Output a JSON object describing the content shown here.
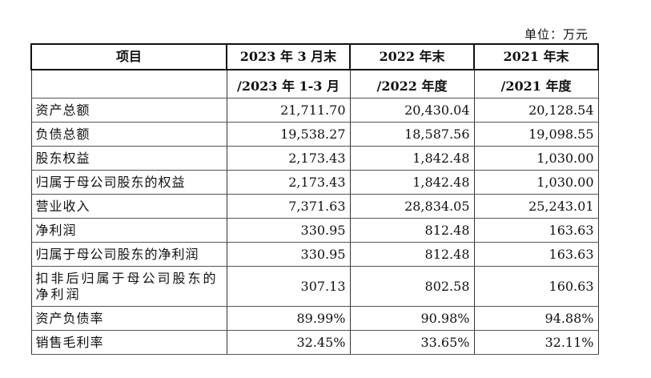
{
  "unit_label": "单位：万元",
  "headers": {
    "item": "项目",
    "col1_a": "2023 年 3 月末",
    "col2_a": "2022 年末",
    "col3_a": "2021 年末",
    "col1_b": "/2023 年 1-3 月",
    "col2_b": "/2022 年度",
    "col3_b": "/2021 年度"
  },
  "rows": [
    {
      "label": "资产总额",
      "v1": "21,711.70",
      "v2": "20,430.04",
      "v3": "20,128.54"
    },
    {
      "label": "负债总额",
      "v1": "19,538.27",
      "v2": "18,587.56",
      "v3": "19,098.55"
    },
    {
      "label": "股东权益",
      "v1": "2,173.43",
      "v2": "1,842.48",
      "v3": "1,030.00"
    },
    {
      "label": "归属于母公司股东的权益",
      "v1": "2,173.43",
      "v2": "1,842.48",
      "v3": "1,030.00"
    },
    {
      "label": "营业收入",
      "v1": "7,371.63",
      "v2": "28,834.05",
      "v3": "25,243.01"
    },
    {
      "label": "净利润",
      "v1": "330.95",
      "v2": "812.48",
      "v3": "163.63"
    },
    {
      "label": "归属于母公司股东的净利润",
      "v1": "330.95",
      "v2": "812.48",
      "v3": "163.63"
    },
    {
      "label": "扣非后归属于母公司股东的净利润",
      "v1": "307.13",
      "v2": "802.58",
      "v3": "160.63"
    },
    {
      "label": "资产负债率",
      "v1": "89.99%",
      "v2": "90.98%",
      "v3": "94.88%"
    },
    {
      "label": "销售毛利率",
      "v1": "32.45%",
      "v2": "33.65%",
      "v3": "32.11%"
    }
  ]
}
